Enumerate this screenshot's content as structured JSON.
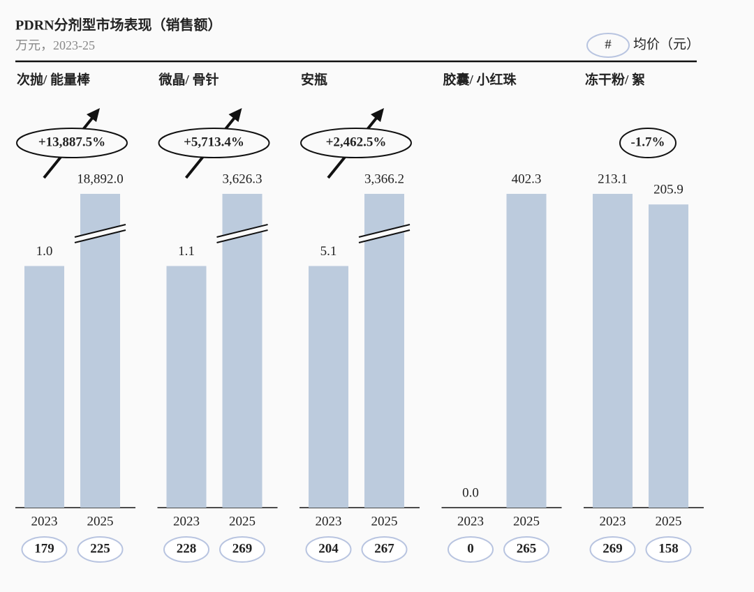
{
  "chart_data": {
    "type": "bar",
    "title": "PDRN分剂型市场表现（销售额）",
    "subtitle": "万元，2023-25",
    "color": "#bccbdd",
    "legend": {
      "symbol": "#",
      "label": "均价（元）"
    },
    "panels": [
      {
        "title": "次抛/ 能量棒",
        "categories": [
          "2023",
          "2025"
        ],
        "values": [
          1.0,
          18892.0
        ],
        "value_labels": [
          "1.0",
          "18,892.0"
        ],
        "axis_break": true,
        "change": {
          "value": 13887.5,
          "label": "+13,887.5%"
        },
        "prices": [
          179,
          225
        ]
      },
      {
        "title": "微晶/ 骨针",
        "categories": [
          "2023",
          "2025"
        ],
        "values": [
          1.1,
          3626.3
        ],
        "value_labels": [
          "1.1",
          "3,626.3"
        ],
        "axis_break": true,
        "change": {
          "value": 5713.4,
          "label": "+5,713.4%"
        },
        "prices": [
          228,
          269
        ]
      },
      {
        "title": "安瓶",
        "categories": [
          "2023",
          "2025"
        ],
        "values": [
          5.1,
          3366.2
        ],
        "value_labels": [
          "5.1",
          "3,366.2"
        ],
        "axis_break": true,
        "change": {
          "value": 2462.5,
          "label": "+2,462.5%"
        },
        "prices": [
          204,
          267
        ]
      },
      {
        "title": "胶囊/ 小红珠",
        "categories": [
          "2023",
          "2025"
        ],
        "values": [
          0.0,
          402.3
        ],
        "value_labels": [
          "0.0",
          "402.3"
        ],
        "axis_break": false,
        "prices": [
          0,
          265
        ]
      },
      {
        "title": "冻干粉/ 絮",
        "categories": [
          "2023",
          "2025"
        ],
        "values": [
          213.1,
          205.9
        ],
        "value_labels": [
          "213.1",
          "205.9"
        ],
        "axis_break": false,
        "change": {
          "value": -1.7,
          "label": "-1.7%"
        },
        "prices": [
          269,
          158
        ]
      }
    ]
  }
}
